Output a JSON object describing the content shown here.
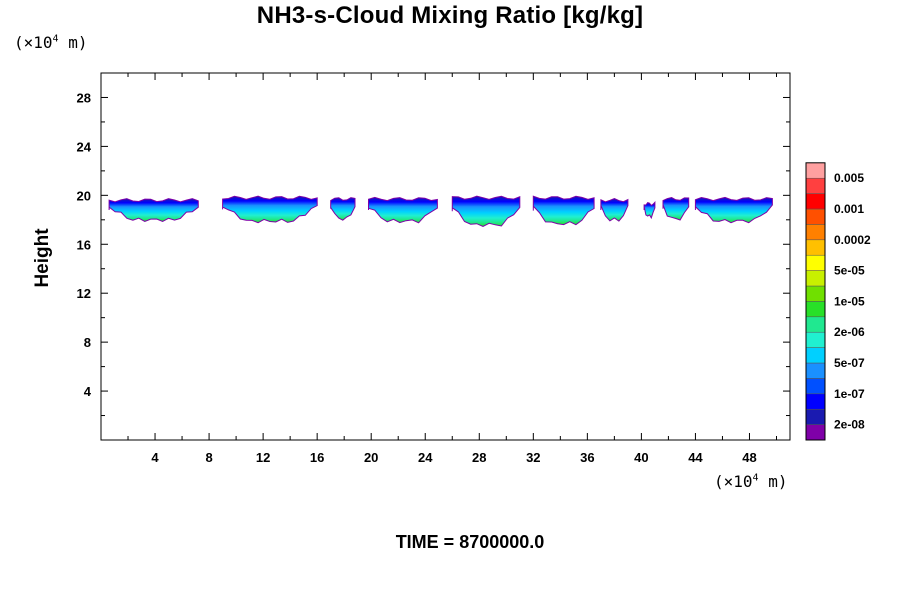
{
  "chart_data": {
    "type": "heatmap",
    "title": "NH3-s-Cloud Mixing Ratio [kg/kg]",
    "ylabel": "Height",
    "y_unit": {
      "prefix": "(×10",
      "exp": "4",
      "suffix": " m)"
    },
    "x_unit": {
      "prefix": "(×10",
      "exp": "4",
      "suffix": " m)"
    },
    "xlim": [
      0,
      51
    ],
    "ylim": [
      0,
      30
    ],
    "x_ticks": [
      4,
      8,
      12,
      16,
      20,
      24,
      28,
      32,
      36,
      40,
      44,
      48
    ],
    "y_ticks": [
      4,
      8,
      12,
      16,
      20,
      24,
      28
    ],
    "time_label": "TIME = 8700000.0",
    "colorbar": {
      "colors": [
        "#7f00a8",
        "#1a1ab0",
        "#0000ff",
        "#0050ff",
        "#1a90ff",
        "#00d0ff",
        "#20f0d0",
        "#20e890",
        "#28e028",
        "#70e000",
        "#c8f000",
        "#ffff00",
        "#ffc000",
        "#ff8000",
        "#ff5000",
        "#ff0000",
        "#ff4040",
        "#ffa0a0"
      ],
      "labels": [
        "2e-08",
        "1e-07",
        "5e-07",
        "2e-06",
        "1e-05",
        "5e-05",
        "0.0002",
        "0.001",
        "0.005"
      ]
    },
    "cloud_segments": [
      {
        "x0": 0.6,
        "x1": 7.2,
        "top": 19.6,
        "bottom": 18.0
      },
      {
        "x0": 9.0,
        "x1": 16.0,
        "top": 19.8,
        "bottom": 17.9
      },
      {
        "x0": 17.0,
        "x1": 18.8,
        "top": 19.7,
        "bottom": 18.1
      },
      {
        "x0": 19.8,
        "x1": 24.9,
        "top": 19.7,
        "bottom": 17.9
      },
      {
        "x0": 26.0,
        "x1": 31.0,
        "top": 19.8,
        "bottom": 17.6
      },
      {
        "x0": 32.0,
        "x1": 36.5,
        "top": 19.8,
        "bottom": 17.7
      },
      {
        "x0": 37.0,
        "x1": 39.0,
        "top": 19.6,
        "bottom": 18.0
      },
      {
        "x0": 40.2,
        "x1": 41.0,
        "top": 19.3,
        "bottom": 18.3
      },
      {
        "x0": 41.6,
        "x1": 43.5,
        "top": 19.7,
        "bottom": 18.1
      },
      {
        "x0": 44.0,
        "x1": 49.7,
        "top": 19.7,
        "bottom": 17.9
      }
    ]
  }
}
